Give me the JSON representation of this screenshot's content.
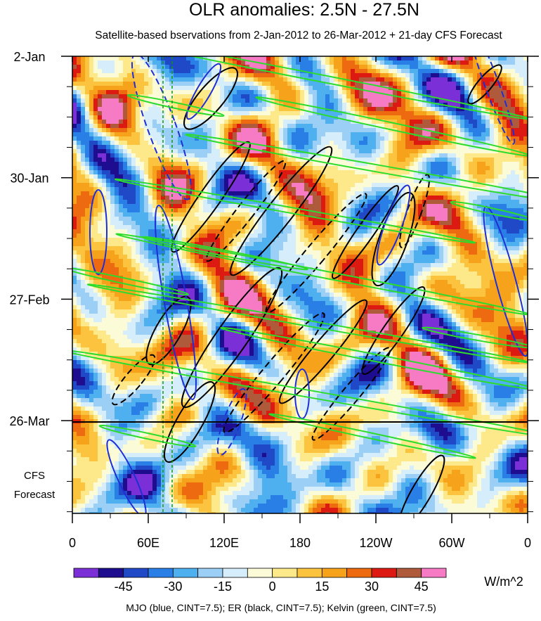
{
  "chart_data": {
    "type": "heatmap",
    "title": "OLR anomalies: 2.5N - 27.5N",
    "subtitle": "Satellite-based bservations from 2-Jan-2012 to 26-Mar-2012 + 21-day CFS Forecast",
    "x_ticks": [
      "0",
      "60E",
      "120E",
      "180",
      "120W",
      "60W",
      "0"
    ],
    "x_range_deg_east": [
      0,
      360
    ],
    "y_ticks": [
      "2-Jan",
      "30-Jan",
      "27-Feb",
      "26-Mar"
    ],
    "forecast_label_line1": "CFS",
    "forecast_label_line2": "Forecast",
    "colorbar": {
      "unit": "W/m^2",
      "tick_labels": [
        "-45",
        "-30",
        "-15",
        "0",
        "15",
        "30",
        "45"
      ],
      "levels": [
        -52.5,
        -45,
        -37.5,
        -30,
        -22.5,
        -15,
        -7.5,
        0,
        7.5,
        15,
        22.5,
        30,
        37.5,
        45,
        52.5
      ],
      "colors": [
        "#7b2fd6",
        "#1f0d8f",
        "#2049c8",
        "#2a7fe6",
        "#4fb0f0",
        "#9ccff5",
        "#d6eefc",
        "#fbfbd8",
        "#fde98a",
        "#fcc43e",
        "#f7a21b",
        "#ee6a10",
        "#dd1a12",
        "#b05a3c",
        "#f77bc4"
      ]
    },
    "footnote": "MJO (blue, CINT=7.5); ER (black, CINT=7.5); Kelvin (green, CINT=7.5)"
  }
}
